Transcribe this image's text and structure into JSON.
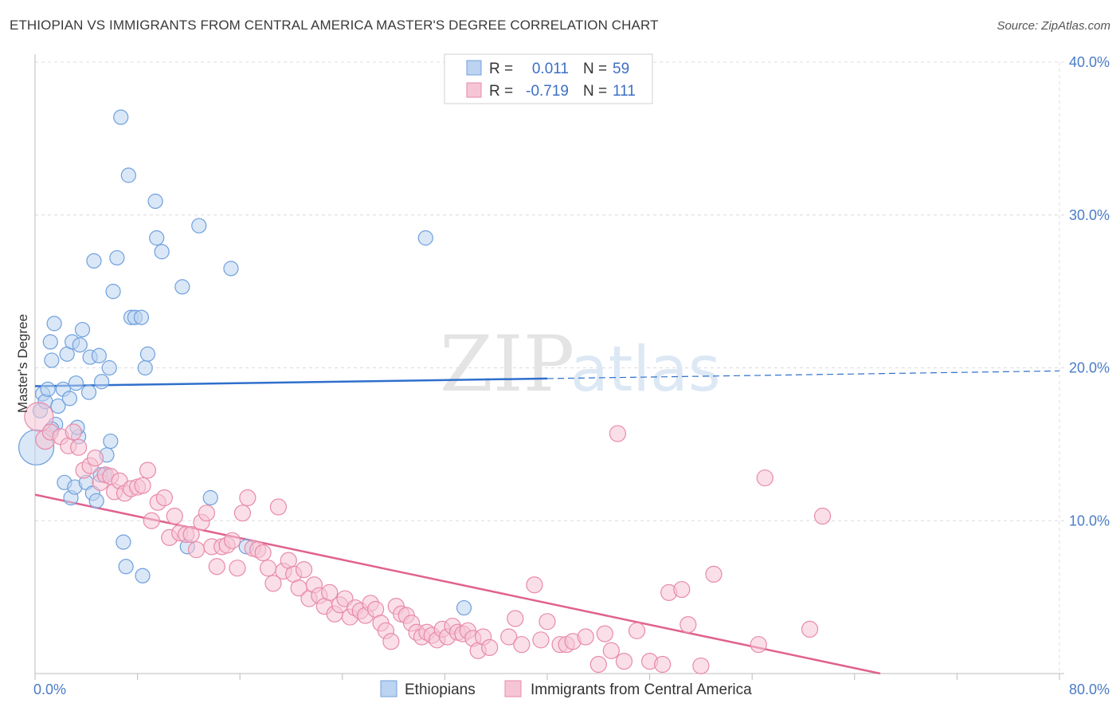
{
  "title": "ETHIOPIAN VS IMMIGRANTS FROM CENTRAL AMERICA MASTER'S DEGREE CORRELATION CHART",
  "source": "Source: ZipAtlas.com",
  "watermark": {
    "zip": "ZIP",
    "atlas": "atlas"
  },
  "colors": {
    "blue": "#6fa0dd",
    "blue_fill": "#bcd3f1",
    "pink": "#e88aa8",
    "pink_fill": "#f6c5d5",
    "blue_line": "#2f6fcc",
    "pink_line": "#e0628f",
    "axis_text": "#4a7cc7"
  },
  "legend": {
    "r_label": "R =",
    "n_label": "N =",
    "rows": [
      {
        "r": "0.011",
        "n": "59"
      },
      {
        "r": "-0.719",
        "n": "111"
      }
    ]
  },
  "chart_data": {
    "type": "scatter",
    "title": "ETHIOPIAN VS IMMIGRANTS FROM CENTRAL AMERICA MASTER'S DEGREE CORRELATION CHART",
    "xlabel": "",
    "ylabel": "Master's Degree",
    "xlim": [
      0,
      80
    ],
    "ylim": [
      0,
      40
    ],
    "x_tick_labels": [
      "0.0%",
      "80.0%"
    ],
    "y_ticks": [
      10,
      20,
      30,
      40
    ],
    "y_tick_labels": [
      "10.0%",
      "20.0%",
      "30.0%",
      "40.0%"
    ],
    "grid": true,
    "legend_position": "top-center",
    "series": [
      {
        "name": "Ethiopians",
        "r": 0.011,
        "n": 59,
        "trend": {
          "x0": 0,
          "y0": 18.8,
          "x1": 40,
          "y1": 19.3,
          "dashed_to_x": 80,
          "dashed_to_y": 19.8
        },
        "points": [
          [
            0.1,
            14.8,
            22
          ],
          [
            0.4,
            17.2,
            9
          ],
          [
            0.6,
            18.3,
            9
          ],
          [
            0.8,
            17.8,
            9
          ],
          [
            1.0,
            18.6,
            9
          ],
          [
            1.2,
            21.7,
            9
          ],
          [
            1.3,
            20.5,
            9
          ],
          [
            1.5,
            22.9,
            9
          ],
          [
            1.6,
            16.3,
            9
          ],
          [
            1.8,
            17.5,
            9
          ],
          [
            2.2,
            18.6,
            9
          ],
          [
            2.3,
            12.5,
            9
          ],
          [
            2.5,
            20.9,
            9
          ],
          [
            2.7,
            18.0,
            9
          ],
          [
            2.8,
            11.5,
            9
          ],
          [
            2.9,
            21.7,
            9
          ],
          [
            3.1,
            12.2,
            9
          ],
          [
            3.2,
            19.0,
            9
          ],
          [
            3.4,
            15.5,
            9
          ],
          [
            3.5,
            21.5,
            9
          ],
          [
            3.7,
            22.5,
            9
          ],
          [
            4.0,
            12.5,
            9
          ],
          [
            4.2,
            18.4,
            9
          ],
          [
            4.3,
            20.7,
            9
          ],
          [
            4.5,
            11.8,
            9
          ],
          [
            4.6,
            27.0,
            9
          ],
          [
            4.8,
            11.3,
            9
          ],
          [
            5.0,
            20.8,
            9
          ],
          [
            5.2,
            19.1,
            9
          ],
          [
            5.4,
            13.0,
            9
          ],
          [
            5.6,
            14.3,
            9
          ],
          [
            5.8,
            20.0,
            9
          ],
          [
            5.9,
            15.2,
            9
          ],
          [
            6.1,
            25.0,
            9
          ],
          [
            6.4,
            27.2,
            9
          ],
          [
            6.7,
            36.4,
            9
          ],
          [
            6.9,
            8.6,
            9
          ],
          [
            7.1,
            7.0,
            9
          ],
          [
            7.3,
            32.6,
            9
          ],
          [
            7.5,
            23.3,
            9
          ],
          [
            7.8,
            23.3,
            9
          ],
          [
            8.3,
            23.3,
            9
          ],
          [
            8.4,
            6.4,
            9
          ],
          [
            8.6,
            20.0,
            9
          ],
          [
            8.8,
            20.9,
            9
          ],
          [
            9.4,
            30.9,
            9
          ],
          [
            9.5,
            28.5,
            9
          ],
          [
            9.9,
            27.6,
            9
          ],
          [
            11.5,
            25.3,
            9
          ],
          [
            11.9,
            8.3,
            9
          ],
          [
            12.8,
            29.3,
            9
          ],
          [
            13.7,
            11.5,
            9
          ],
          [
            15.3,
            26.5,
            9
          ],
          [
            16.5,
            8.3,
            9
          ],
          [
            30.5,
            28.5,
            9
          ],
          [
            33.5,
            4.3,
            9
          ],
          [
            1.3,
            16.0,
            9
          ],
          [
            3.3,
            16.1,
            9
          ],
          [
            5.1,
            13.0,
            9
          ]
        ]
      },
      {
        "name": "Immigrants from Central America",
        "r": -0.719,
        "n": 111,
        "trend": {
          "x0": 0,
          "y0": 11.7,
          "x1": 66,
          "y1": 0.0
        },
        "points": [
          [
            0.3,
            16.8,
            18
          ],
          [
            0.8,
            15.3,
            12
          ],
          [
            1.2,
            15.8,
            10
          ],
          [
            2.0,
            15.5,
            10
          ],
          [
            2.6,
            14.9,
            10
          ],
          [
            3.0,
            15.8,
            10
          ],
          [
            3.4,
            14.8,
            10
          ],
          [
            3.8,
            13.3,
            10
          ],
          [
            4.3,
            13.6,
            10
          ],
          [
            4.7,
            14.1,
            10
          ],
          [
            5.1,
            12.5,
            10
          ],
          [
            5.5,
            13.0,
            10
          ],
          [
            5.9,
            12.9,
            10
          ],
          [
            6.2,
            11.9,
            10
          ],
          [
            6.6,
            12.6,
            10
          ],
          [
            7.0,
            11.8,
            10
          ],
          [
            7.5,
            12.1,
            10
          ],
          [
            8.0,
            12.2,
            10
          ],
          [
            8.4,
            12.3,
            10
          ],
          [
            8.8,
            13.3,
            10
          ],
          [
            9.1,
            10.0,
            10
          ],
          [
            9.6,
            11.2,
            10
          ],
          [
            10.1,
            11.5,
            10
          ],
          [
            10.5,
            8.9,
            10
          ],
          [
            10.9,
            10.3,
            10
          ],
          [
            11.3,
            9.2,
            10
          ],
          [
            11.8,
            9.1,
            10
          ],
          [
            12.2,
            9.1,
            10
          ],
          [
            12.6,
            8.1,
            10
          ],
          [
            13.0,
            9.9,
            10
          ],
          [
            13.4,
            10.5,
            10
          ],
          [
            13.8,
            8.3,
            10
          ],
          [
            14.2,
            7.0,
            10
          ],
          [
            14.6,
            8.3,
            10
          ],
          [
            15.0,
            8.4,
            10
          ],
          [
            15.4,
            8.7,
            10
          ],
          [
            15.8,
            6.9,
            10
          ],
          [
            16.2,
            10.5,
            10
          ],
          [
            16.6,
            11.5,
            10
          ],
          [
            17.0,
            8.2,
            10
          ],
          [
            17.4,
            8.1,
            10
          ],
          [
            17.8,
            7.9,
            10
          ],
          [
            18.2,
            6.9,
            10
          ],
          [
            18.6,
            5.9,
            10
          ],
          [
            19.0,
            10.9,
            10
          ],
          [
            19.4,
            6.7,
            10
          ],
          [
            19.8,
            7.4,
            10
          ],
          [
            20.2,
            6.5,
            10
          ],
          [
            20.6,
            5.6,
            10
          ],
          [
            21.0,
            6.8,
            10
          ],
          [
            21.4,
            4.9,
            10
          ],
          [
            21.8,
            5.8,
            10
          ],
          [
            22.2,
            5.1,
            10
          ],
          [
            22.6,
            4.4,
            10
          ],
          [
            23.0,
            5.3,
            10
          ],
          [
            23.4,
            3.9,
            10
          ],
          [
            23.8,
            4.5,
            10
          ],
          [
            24.2,
            4.9,
            10
          ],
          [
            24.6,
            3.7,
            10
          ],
          [
            25.0,
            4.3,
            10
          ],
          [
            25.4,
            4.1,
            10
          ],
          [
            25.8,
            3.8,
            10
          ],
          [
            26.2,
            4.6,
            10
          ],
          [
            26.6,
            4.2,
            10
          ],
          [
            27.0,
            3.3,
            10
          ],
          [
            27.4,
            2.8,
            10
          ],
          [
            27.8,
            2.1,
            10
          ],
          [
            28.2,
            4.4,
            10
          ],
          [
            28.6,
            3.9,
            10
          ],
          [
            29.0,
            3.8,
            10
          ],
          [
            29.4,
            3.3,
            10
          ],
          [
            29.8,
            2.7,
            10
          ],
          [
            30.2,
            2.4,
            10
          ],
          [
            30.6,
            2.7,
            10
          ],
          [
            31.0,
            2.5,
            10
          ],
          [
            31.4,
            2.2,
            10
          ],
          [
            31.8,
            2.9,
            10
          ],
          [
            32.2,
            2.4,
            10
          ],
          [
            32.6,
            3.1,
            10
          ],
          [
            33.0,
            2.7,
            10
          ],
          [
            33.4,
            2.6,
            10
          ],
          [
            33.8,
            2.8,
            10
          ],
          [
            34.2,
            2.3,
            10
          ],
          [
            34.6,
            1.5,
            10
          ],
          [
            35.0,
            2.4,
            10
          ],
          [
            37.0,
            2.4,
            10
          ],
          [
            37.5,
            3.6,
            10
          ],
          [
            38.0,
            1.9,
            10
          ],
          [
            39.0,
            5.8,
            10
          ],
          [
            39.5,
            2.2,
            10
          ],
          [
            40.0,
            3.4,
            10
          ],
          [
            41.0,
            1.9,
            10
          ],
          [
            41.5,
            1.9,
            10
          ],
          [
            42.0,
            2.1,
            10
          ],
          [
            43.0,
            2.4,
            10
          ],
          [
            44.0,
            0.6,
            10
          ],
          [
            44.5,
            2.6,
            10
          ],
          [
            45.0,
            1.5,
            10
          ],
          [
            46.0,
            0.8,
            10
          ],
          [
            47.0,
            2.8,
            10
          ],
          [
            48.0,
            0.8,
            10
          ],
          [
            49.0,
            0.6,
            10
          ],
          [
            49.5,
            5.3,
            10
          ],
          [
            50.5,
            5.5,
            10
          ],
          [
            51.0,
            3.2,
            10
          ],
          [
            52.0,
            0.5,
            10
          ],
          [
            53.0,
            6.5,
            10
          ],
          [
            56.5,
            1.9,
            10
          ],
          [
            60.5,
            2.9,
            10
          ],
          [
            61.5,
            10.3,
            10
          ],
          [
            45.5,
            15.7,
            10
          ],
          [
            57.0,
            12.8,
            10
          ],
          [
            35.5,
            1.7,
            10
          ]
        ]
      }
    ]
  },
  "bottom_legend": [
    "Ethiopians",
    "Immigrants from Central America"
  ]
}
